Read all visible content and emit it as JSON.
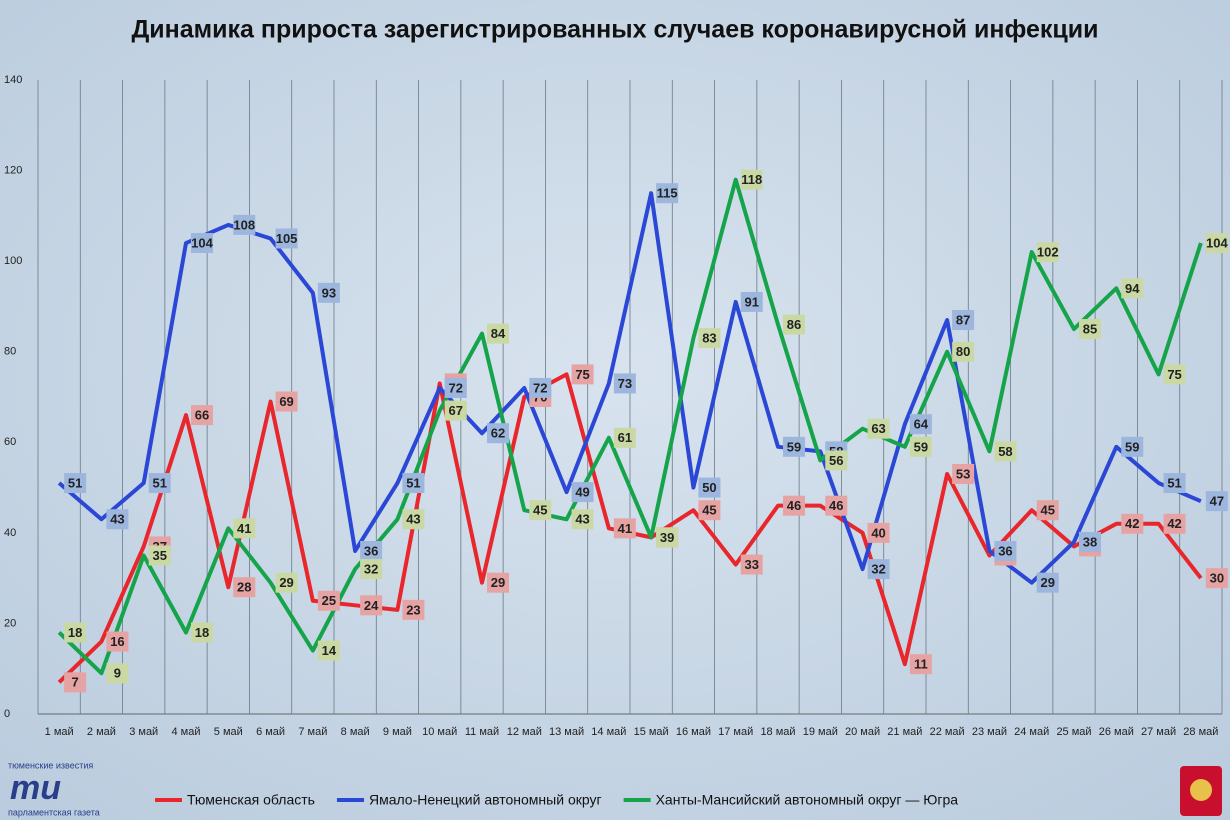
{
  "chart_data": {
    "type": "line",
    "title": "Динамика прироста зарегистрированных случаев коронавирусной инфекции",
    "categories": [
      "1 май",
      "2 май",
      "3 май",
      "4 май",
      "5 май",
      "6 май",
      "7 май",
      "8 май",
      "9 май",
      "10 май",
      "11 май",
      "12 май",
      "13 май",
      "14 май",
      "15 май",
      "16 май",
      "17 май",
      "18 май",
      "19 май",
      "20 май",
      "21 май",
      "22 май",
      "23 май",
      "24 май",
      "25 май",
      "26 май",
      "27 май",
      "28 май"
    ],
    "series": [
      {
        "name": "Тюменская область",
        "color": "#e8262b",
        "label_color": "#e6a3a3",
        "values": [
          7,
          16,
          37,
          66,
          28,
          69,
          25,
          24,
          23,
          73,
          29,
          70,
          75,
          41,
          39,
          45,
          33,
          46,
          46,
          40,
          11,
          53,
          35,
          45,
          37,
          42,
          42,
          30
        ]
      },
      {
        "name": "Ямало-Ненецкий автономный округ",
        "color": "#2a47d6",
        "label_color": "#9db6dd",
        "values": [
          51,
          43,
          51,
          104,
          108,
          105,
          93,
          36,
          51,
          72,
          62,
          72,
          49,
          73,
          115,
          50,
          91,
          59,
          58,
          32,
          64,
          87,
          36,
          29,
          38,
          59,
          51,
          47
        ]
      },
      {
        "name": "Ханты-Мансийский автономный округ — Югра",
        "color": "#15a44a",
        "label_color": "#cad9a4",
        "values": [
          18,
          9,
          35,
          18,
          41,
          29,
          14,
          32,
          43,
          67,
          84,
          45,
          43,
          61,
          39,
          83,
          118,
          86,
          56,
          63,
          59,
          80,
          58,
          102,
          85,
          94,
          75,
          104
        ]
      }
    ],
    "ylim": [
      0,
      140
    ],
    "yticks": [
      0,
      20,
      40,
      60,
      80,
      100,
      120,
      140
    ],
    "grid": true,
    "legend": "bottom"
  },
  "logo": {
    "top": "тюменские известия",
    "mark": "ти",
    "bottom": "парламентская газета"
  }
}
